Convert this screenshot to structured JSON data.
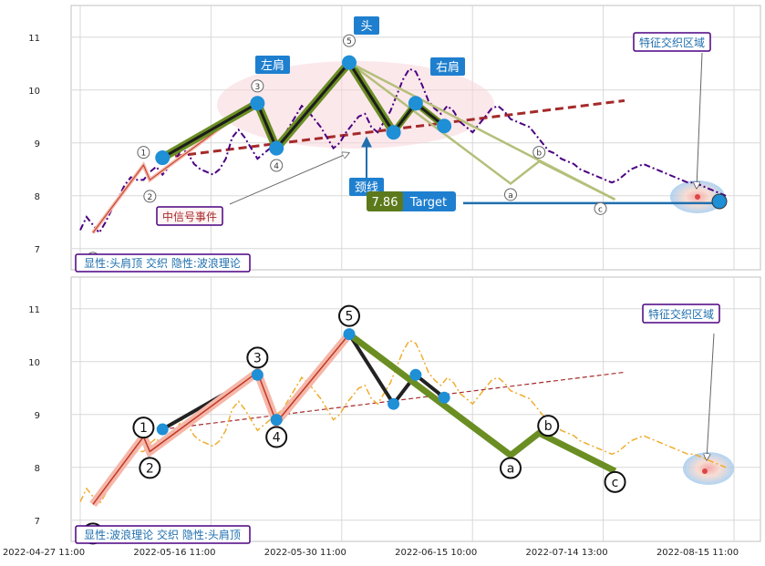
{
  "chart_data": [
    {
      "type": "line",
      "title": "",
      "x_ticks": [
        "2022-04-27 11:00",
        "2022-05-16 11:00",
        "2022-05-30 11:00",
        "2022-06-15 10:00",
        "2022-07-14 13:00",
        "2022-08-15 11:00"
      ],
      "y_ticks": [
        7,
        8,
        9,
        10,
        11
      ],
      "ylim": [
        6.6,
        11.6
      ],
      "grid": true,
      "price_series": {
        "name": "",
        "values": [
          7.35,
          7.6,
          7.45,
          7.3,
          7.5,
          7.75,
          7.95,
          8.2,
          8.35,
          8.3,
          8.3,
          8.45,
          8.55,
          8.4,
          8.55,
          8.65,
          8.9,
          8.8,
          8.6,
          8.5,
          8.45,
          8.4,
          8.5,
          8.7,
          9.1,
          9.25,
          9.1,
          8.9,
          8.7,
          8.8,
          8.9,
          9.0,
          9.1,
          9.3,
          9.5,
          9.7,
          9.6,
          9.45,
          9.3,
          9.1,
          8.9,
          9.0,
          9.2,
          9.35,
          9.5,
          9.55,
          9.3,
          9.2,
          9.4,
          9.6,
          9.9,
          10.2,
          10.4,
          10.35,
          10.1,
          9.8,
          9.65,
          9.55,
          9.7,
          9.6,
          9.4,
          9.3,
          9.2,
          9.35,
          9.5,
          9.65,
          9.7,
          9.6,
          9.45,
          9.4,
          9.35,
          9.3,
          9.15,
          9.0,
          8.85,
          8.8,
          8.7,
          8.65,
          8.6,
          8.5,
          8.45,
          8.4,
          8.35,
          8.3,
          8.25,
          8.3,
          8.4,
          8.5,
          8.55,
          8.6,
          8.55,
          8.5,
          8.45,
          8.4,
          8.35,
          8.3,
          8.25,
          8.25,
          8.2,
          8.15,
          8.1,
          8.05,
          8.0
        ]
      },
      "hs_points": [
        {
          "label": "",
          "x": 13,
          "y": 8.72
        },
        {
          "label": "左肩",
          "x": 28,
          "y": 9.75
        },
        {
          "label": "",
          "x": 31,
          "y": 8.9
        },
        {
          "label": "头",
          "x": 42.5,
          "y": 10.52
        },
        {
          "label": "",
          "x": 49.5,
          "y": 9.2
        },
        {
          "label": "右肩",
          "x": 53,
          "y": 9.75
        },
        {
          "label": "",
          "x": 57.5,
          "y": 9.32
        }
      ],
      "wave_points": [
        {
          "label": "0",
          "x": 2,
          "y": 7.3
        },
        {
          "label": "1",
          "x": 10,
          "y": 8.58
        },
        {
          "label": "2",
          "x": 11,
          "y": 8.3
        },
        {
          "label": "3",
          "x": 28,
          "y": 9.8
        },
        {
          "label": "4",
          "x": 31,
          "y": 8.85
        },
        {
          "label": "5",
          "x": 42.5,
          "y": 10.52
        },
        {
          "label": "a",
          "x": 68,
          "y": 8.23
        },
        {
          "label": "b",
          "x": 72.5,
          "y": 8.65
        },
        {
          "label": "c",
          "x": 84.5,
          "y": 7.93
        }
      ],
      "neckline": {
        "x0": 13,
        "y0": 8.72,
        "x1": 86,
        "y1": 9.8
      },
      "target": {
        "value": "7.86",
        "label": "Target"
      },
      "labels": {
        "neckline": "颈线",
        "signal": "中信号事件",
        "zone": "特征交织区域",
        "corner": "显性:头肩顶 交织 隐性:波浪理论"
      }
    },
    {
      "type": "line",
      "title": "",
      "x_ticks": [
        "2022-04-27 11:00",
        "2022-05-16 11:00",
        "2022-05-30 11:00",
        "2022-06-15 10:00",
        "2022-07-14 13:00",
        "2022-08-15 11:00"
      ],
      "y_ticks": [
        7,
        8,
        9,
        10,
        11
      ],
      "ylim": [
        6.6,
        11.6
      ],
      "grid": true,
      "labels": {
        "zone": "特征交织区域",
        "corner": "显性:波浪理论 交织 隐性:头肩顶"
      }
    }
  ],
  "colors": {
    "price_top": "#4b0082",
    "price_bottom": "#f0ad30",
    "hs_line": "#6b8e23",
    "wave_thin": "#c0392b",
    "neck": "#a52a2a",
    "marker": "#1f8fd6",
    "label_bg": "#1f7fcf",
    "purple_border": "#4b0082",
    "target_green": "#5c7a1c"
  }
}
